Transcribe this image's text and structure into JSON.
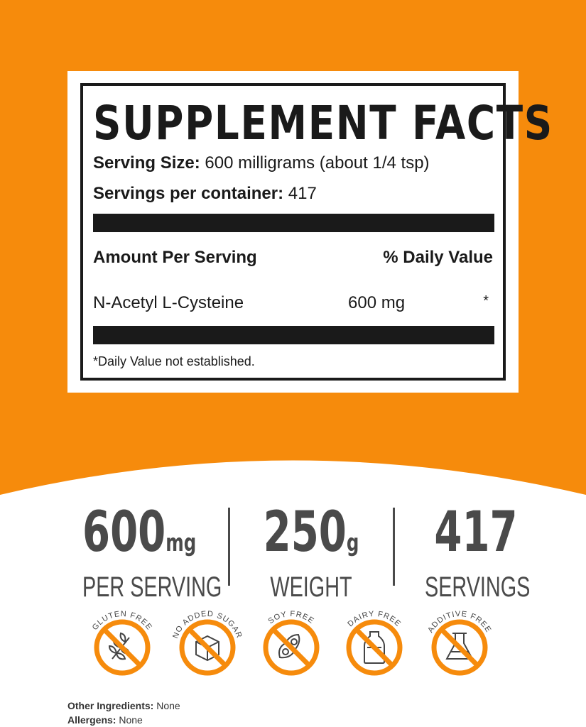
{
  "colors": {
    "brand_orange": "#f68b0c",
    "text_dark": "#1a1a1a",
    "stat_gray": "#4a4a4a"
  },
  "label": {
    "title": "SUPPLEMENT FACTS",
    "serving_size_label": "Serving Size:",
    "serving_size_value": "600 milligrams (about 1/4 tsp)",
    "servings_label": "Servings per container:",
    "servings_value": "417",
    "amount_header": "Amount Per Serving",
    "dv_header": "% Daily Value",
    "ingredients": [
      {
        "name": "N-Acetyl L-Cysteine",
        "amount": "600 mg",
        "dv": "*"
      }
    ],
    "footnote": "*Daily Value not established."
  },
  "stats": [
    {
      "value": "600",
      "unit": "mg",
      "label": "PER SERVING"
    },
    {
      "value": "250",
      "unit": "g",
      "label": "WEIGHT"
    },
    {
      "value": "417",
      "unit": "",
      "label": "SERVINGS"
    }
  ],
  "badges": [
    {
      "label": "GLUTEN FREE",
      "icon": "wheat-icon"
    },
    {
      "label": "NO ADDED SUGAR",
      "icon": "sugar-cube-icon"
    },
    {
      "label": "SOY FREE",
      "icon": "soybean-icon"
    },
    {
      "label": "DAIRY FREE",
      "icon": "milk-bottle-icon"
    },
    {
      "label": "ADDITIVE FREE",
      "icon": "flask-icon"
    }
  ],
  "footer": {
    "other_label": "Other Ingredients:",
    "other_value": "None",
    "allergens_label": "Allergens:",
    "allergens_value": "None"
  }
}
